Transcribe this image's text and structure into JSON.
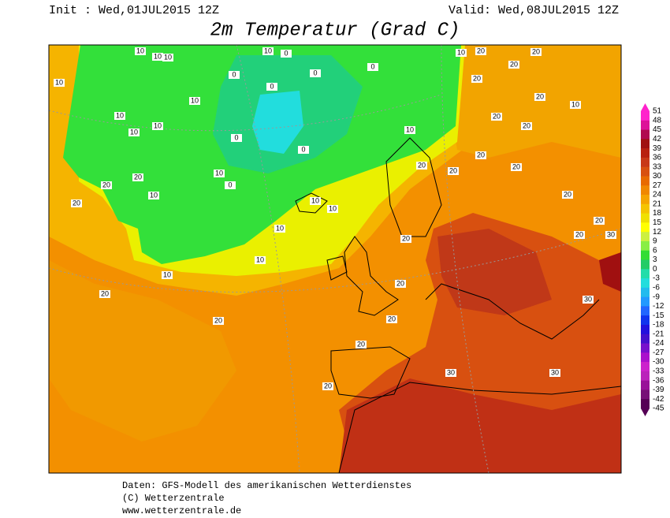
{
  "header": {
    "init": "Init : Wed,01JUL2015 12Z",
    "valid": "Valid: Wed,08JUL2015 12Z",
    "title": "2m Temperatur (Grad C)"
  },
  "footer": [
    "Daten: GFS-Modell des amerikanischen Wetterdienstes",
    "(C) Wetterzentrale",
    "www.wetterzentrale.de"
  ],
  "colorbar": {
    "levels": [
      51,
      48,
      45,
      42,
      39,
      36,
      33,
      30,
      27,
      24,
      21,
      18,
      15,
      12,
      9,
      6,
      3,
      0,
      -3,
      -6,
      -9,
      -12,
      -15,
      -18,
      -21,
      -24,
      -27,
      -30,
      -33,
      -36,
      -39,
      -42,
      -45
    ],
    "colors": [
      "#ff22cc",
      "#dd1199",
      "#b00a50",
      "#a01010",
      "#b82010",
      "#c83818",
      "#d85010",
      "#e86a00",
      "#f08800",
      "#f5a500",
      "#f5c400",
      "#f0e000",
      "#ffff00",
      "#ccf040",
      "#88ee44",
      "#33dd33",
      "#22cc66",
      "#22ddaa",
      "#22dddd",
      "#22bbee",
      "#2299ff",
      "#2266ff",
      "#1133ee",
      "#2211dd",
      "#4411cc",
      "#7711cc",
      "#aa11cc",
      "#cc22cc",
      "#bb22bb",
      "#991199",
      "#771177",
      "#550055"
    ]
  },
  "contour_labels": [
    10,
    10,
    10,
    10,
    0,
    0,
    0,
    0,
    10,
    20,
    20,
    20,
    20,
    10,
    10,
    10,
    10,
    10,
    0,
    20,
    10,
    20,
    20,
    0,
    0,
    10,
    0,
    20,
    20,
    20,
    10,
    10,
    20,
    20,
    20,
    20,
    20,
    20,
    10,
    10,
    10,
    10,
    10,
    20,
    20,
    20,
    20,
    30,
    30,
    30,
    20,
    20,
    20,
    20,
    30
  ]
}
